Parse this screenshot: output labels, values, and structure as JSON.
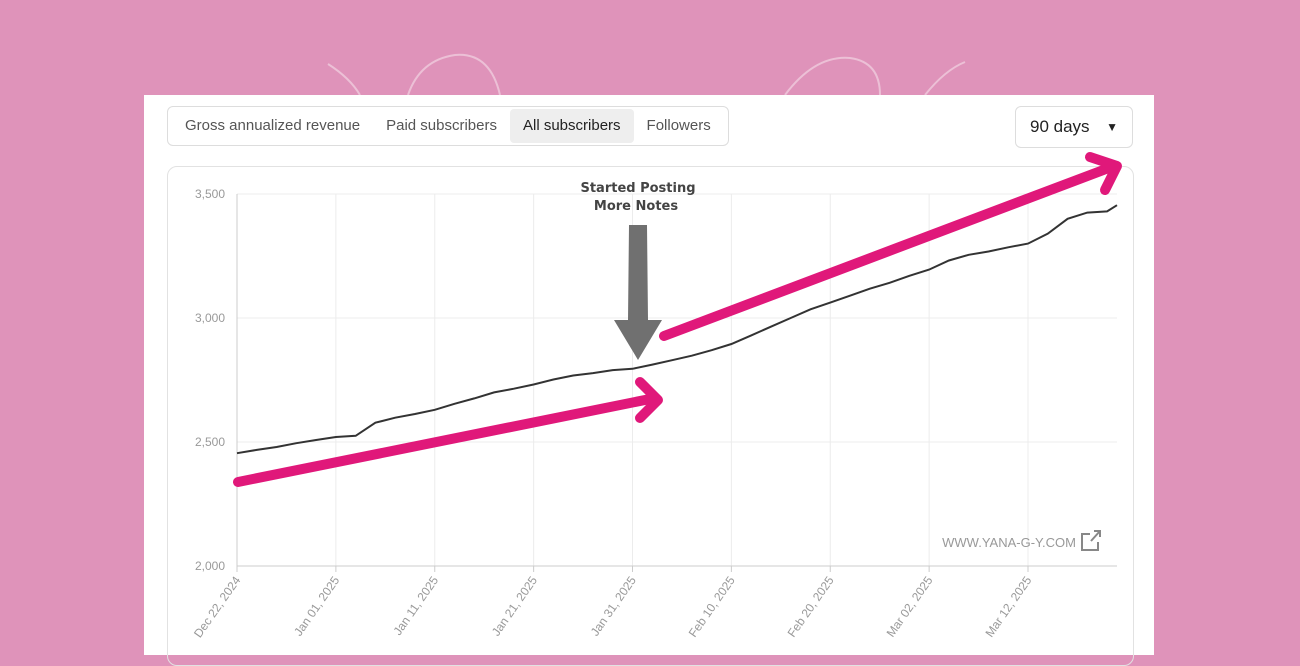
{
  "tabs": [
    {
      "label": "Gross annualized revenue",
      "active": false
    },
    {
      "label": "Paid subscribers",
      "active": false
    },
    {
      "label": "All subscribers",
      "active": true
    },
    {
      "label": "Followers",
      "active": false
    }
  ],
  "range_select": {
    "value": "90 days",
    "icon": "triangle-down-icon"
  },
  "colors": {
    "background": "#df93ba",
    "line": "#333333",
    "arrow_pink": "#e0187a",
    "arrow_gray": "#707070",
    "grid": "#ececec",
    "tick": "#999999"
  },
  "annotation": {
    "line1": "Started Posting",
    "line2": "More Notes"
  },
  "watermark": {
    "text": "WWW.YANA-G-Y.COM",
    "icon": "external-link-icon"
  },
  "chart_data": {
    "type": "line",
    "title": "",
    "xlabel": "",
    "ylabel": "",
    "ylim": [
      2000,
      3500
    ],
    "yticks": [
      2000,
      2500,
      3000,
      3500
    ],
    "ytick_labels": [
      "2,000",
      "2,500",
      "3,000",
      "3,500"
    ],
    "xtick_labels": [
      "Dec 22, 2024",
      "Jan 01, 2025",
      "Jan 11, 2025",
      "Jan 21, 2025",
      "Jan 31, 2025",
      "Feb 10, 2025",
      "Feb 20, 2025",
      "Mar 02, 2025",
      "Mar 12, 2025"
    ],
    "xtick_dates": [
      "2024-12-22",
      "2025-01-01",
      "2025-01-11",
      "2025-01-21",
      "2025-01-31",
      "2025-02-10",
      "2025-02-20",
      "2025-03-02",
      "2025-03-12"
    ],
    "grid": true,
    "x": [
      "2024-12-22",
      "2024-12-24",
      "2024-12-26",
      "2024-12-28",
      "2024-12-30",
      "2025-01-01",
      "2025-01-03",
      "2025-01-05",
      "2025-01-07",
      "2025-01-09",
      "2025-01-11",
      "2025-01-13",
      "2025-01-15",
      "2025-01-17",
      "2025-01-19",
      "2025-01-21",
      "2025-01-23",
      "2025-01-25",
      "2025-01-27",
      "2025-01-29",
      "2025-01-31",
      "2025-02-02",
      "2025-02-04",
      "2025-02-06",
      "2025-02-08",
      "2025-02-10",
      "2025-02-12",
      "2025-02-14",
      "2025-02-16",
      "2025-02-18",
      "2025-02-20",
      "2025-02-22",
      "2025-02-24",
      "2025-02-26",
      "2025-02-28",
      "2025-03-02",
      "2025-03-04",
      "2025-03-06",
      "2025-03-08",
      "2025-03-10",
      "2025-03-12",
      "2025-03-14",
      "2025-03-16",
      "2025-03-18",
      "2025-03-20",
      "2025-03-21"
    ],
    "y": [
      2455,
      2468,
      2480,
      2495,
      2508,
      2520,
      2525,
      2578,
      2598,
      2613,
      2630,
      2654,
      2676,
      2700,
      2715,
      2732,
      2752,
      2768,
      2778,
      2790,
      2795,
      2812,
      2830,
      2848,
      2870,
      2895,
      2930,
      2965,
      3000,
      3035,
      3062,
      3090,
      3118,
      3142,
      3170,
      3195,
      3232,
      3255,
      3268,
      3285,
      3300,
      3340,
      3400,
      3425,
      3430,
      3455
    ]
  }
}
